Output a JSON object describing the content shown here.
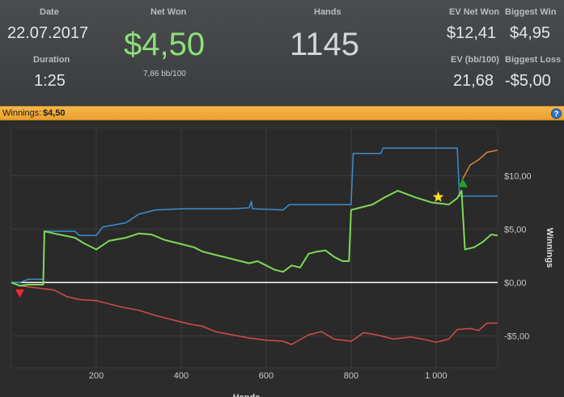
{
  "stats": {
    "date_label": "Date",
    "date_value": "22.07.2017",
    "duration_label": "Duration",
    "duration_value": "1:25",
    "net_won_label": "Net Won",
    "net_won_value": "$4,50",
    "bb_per_100": "7,86 bb/100",
    "hands_label": "Hands",
    "hands_value": "1145",
    "ev_net_won_label": "EV Net Won",
    "ev_net_won_value": "$12,41",
    "biggest_win_label": "Biggest Win",
    "biggest_win_value": "$4,95",
    "ev_bb_label": "EV (bb/100)",
    "ev_bb_value": "21,68",
    "biggest_loss_label": "Biggest Loss",
    "biggest_loss_value": "-$5,00"
  },
  "winbar": {
    "label": "Winnings:",
    "value": "$4,50",
    "help_glyph": "?"
  },
  "chart_data": {
    "type": "line",
    "xlim": [
      0,
      1145
    ],
    "ylim": [
      -8,
      14.5
    ],
    "x_ticks": [
      200,
      400,
      600,
      800,
      1000
    ],
    "x_tick_labels": [
      "200",
      "400",
      "600",
      "800",
      "1 000"
    ],
    "y_ticks": [
      -5,
      0,
      5,
      10
    ],
    "y_tick_labels": [
      "-$5,00",
      "$0,00",
      "$5,00",
      "$10,00"
    ],
    "ylabel": "Winnings",
    "xlabel": "Hands",
    "grid": true,
    "colors": {
      "green": "#7ed957",
      "blue": "#3c8fd0",
      "red": "#d64b4b",
      "orange": "#e0873a",
      "zero": "#ffffff",
      "grid": "#3c3c3c"
    },
    "series": [
      {
        "color": "blue",
        "points": [
          [
            0,
            0
          ],
          [
            20,
            0
          ],
          [
            40,
            0.3
          ],
          [
            75,
            0.3
          ],
          [
            78,
            4.8
          ],
          [
            150,
            4.8
          ],
          [
            160,
            4.4
          ],
          [
            200,
            4.4
          ],
          [
            215,
            5.2
          ],
          [
            270,
            5.6
          ],
          [
            300,
            6.4
          ],
          [
            340,
            6.8
          ],
          [
            400,
            6.9
          ],
          [
            520,
            6.9
          ],
          [
            560,
            7.0
          ],
          [
            565,
            7.6
          ],
          [
            568,
            6.9
          ],
          [
            640,
            6.8
          ],
          [
            655,
            7.3
          ],
          [
            800,
            7.3
          ],
          [
            805,
            12.1
          ],
          [
            870,
            12.1
          ],
          [
            875,
            12.6
          ],
          [
            1050,
            12.6
          ],
          [
            1055,
            8.1
          ],
          [
            1145,
            8.1
          ]
        ]
      },
      {
        "color": "green",
        "points": [
          [
            0,
            0
          ],
          [
            20,
            -0.3
          ],
          [
            40,
            -0.2
          ],
          [
            75,
            -0.2
          ],
          [
            78,
            4.8
          ],
          [
            100,
            4.6
          ],
          [
            150,
            4.2
          ],
          [
            170,
            3.7
          ],
          [
            200,
            3.1
          ],
          [
            230,
            3.9
          ],
          [
            270,
            4.2
          ],
          [
            300,
            4.6
          ],
          [
            330,
            4.5
          ],
          [
            360,
            4.0
          ],
          [
            400,
            3.6
          ],
          [
            430,
            3.3
          ],
          [
            450,
            2.9
          ],
          [
            480,
            2.6
          ],
          [
            510,
            2.3
          ],
          [
            540,
            2.0
          ],
          [
            560,
            1.8
          ],
          [
            580,
            2.0
          ],
          [
            600,
            1.6
          ],
          [
            620,
            1.2
          ],
          [
            640,
            1.0
          ],
          [
            660,
            1.6
          ],
          [
            680,
            1.4
          ],
          [
            700,
            2.7
          ],
          [
            720,
            2.9
          ],
          [
            740,
            3.0
          ],
          [
            760,
            2.4
          ],
          [
            780,
            2.0
          ],
          [
            795,
            2.0
          ],
          [
            800,
            6.8
          ],
          [
            820,
            7.0
          ],
          [
            850,
            7.3
          ],
          [
            880,
            8.0
          ],
          [
            910,
            8.6
          ],
          [
            950,
            8.0
          ],
          [
            990,
            7.5
          ],
          [
            1030,
            7.3
          ],
          [
            1050,
            7.9
          ],
          [
            1060,
            8.6
          ],
          [
            1068,
            3.1
          ],
          [
            1090,
            3.3
          ],
          [
            1110,
            3.8
          ],
          [
            1130,
            4.5
          ],
          [
            1145,
            4.4
          ]
        ]
      },
      {
        "color": "red",
        "points": [
          [
            0,
            0
          ],
          [
            20,
            -0.3
          ],
          [
            40,
            -0.4
          ],
          [
            60,
            -0.5
          ],
          [
            100,
            -0.7
          ],
          [
            130,
            -1.3
          ],
          [
            160,
            -1.6
          ],
          [
            200,
            -1.7
          ],
          [
            230,
            -2.0
          ],
          [
            260,
            -2.3
          ],
          [
            300,
            -2.6
          ],
          [
            340,
            -3.1
          ],
          [
            380,
            -3.5
          ],
          [
            420,
            -3.9
          ],
          [
            450,
            -4.1
          ],
          [
            480,
            -4.6
          ],
          [
            520,
            -4.9
          ],
          [
            560,
            -5.2
          ],
          [
            600,
            -5.4
          ],
          [
            640,
            -5.5
          ],
          [
            660,
            -5.8
          ],
          [
            700,
            -4.9
          ],
          [
            730,
            -4.6
          ],
          [
            760,
            -5.3
          ],
          [
            800,
            -5.5
          ],
          [
            830,
            -4.7
          ],
          [
            860,
            -4.9
          ],
          [
            900,
            -5.3
          ],
          [
            940,
            -5.1
          ],
          [
            980,
            -5.4
          ],
          [
            1000,
            -5.6
          ],
          [
            1030,
            -5.3
          ],
          [
            1050,
            -4.4
          ],
          [
            1080,
            -4.3
          ],
          [
            1100,
            -4.5
          ],
          [
            1120,
            -3.8
          ],
          [
            1145,
            -3.8
          ]
        ]
      },
      {
        "color": "orange",
        "points": [
          [
            1060,
            9.5
          ],
          [
            1080,
            11.0
          ],
          [
            1100,
            11.5
          ],
          [
            1120,
            12.2
          ],
          [
            1145,
            12.4
          ]
        ]
      }
    ],
    "markers": [
      {
        "type": "down-triangle",
        "x": 20,
        "y": -1.0,
        "color": "#e03030"
      },
      {
        "type": "star",
        "x": 1005,
        "y": 8.0,
        "color": "#ffe030"
      },
      {
        "type": "up-triangle",
        "x": 1063,
        "y": 9.3,
        "color": "#2aa02a"
      }
    ]
  }
}
